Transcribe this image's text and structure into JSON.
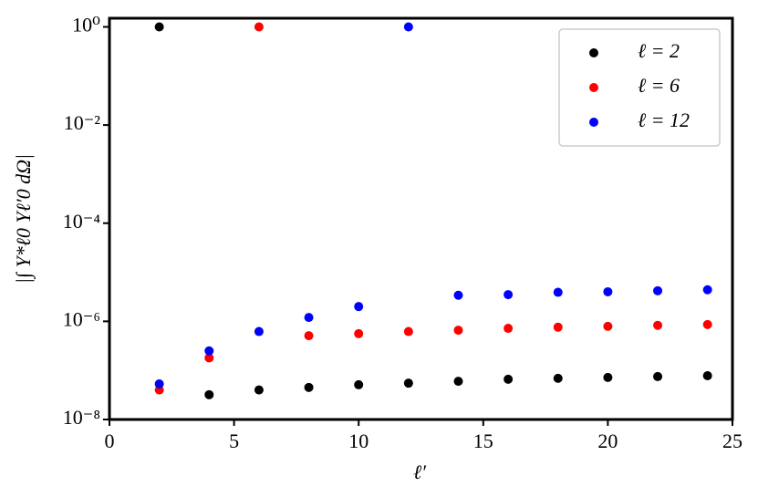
{
  "chart_data": {
    "type": "scatter",
    "x_label": "ℓ′",
    "y_label": "|∫ Y*ℓ0 Yℓ′0 dΩ|",
    "xlim": [
      0,
      25
    ],
    "xticks": [
      0,
      5,
      10,
      15,
      20,
      25
    ],
    "ylim": [
      1e-08,
      1.5
    ],
    "y_scale": "log",
    "yticks": [
      {
        "value": 1e-08,
        "label": "10⁻⁸"
      },
      {
        "value": 1e-06,
        "label": "10⁻⁶"
      },
      {
        "value": 0.0001,
        "label": "10⁻⁴"
      },
      {
        "value": 0.01,
        "label": "10⁻²"
      },
      {
        "value": 1,
        "label": "10⁰"
      }
    ],
    "legend": "upper right",
    "series": [
      {
        "name": "ℓ = 2",
        "color": "#000000",
        "x": [
          2,
          4,
          6,
          8,
          10,
          12,
          14,
          16,
          18,
          20,
          22,
          24
        ],
        "values": [
          1,
          3.2e-08,
          4e-08,
          4.5e-08,
          5.1e-08,
          5.5e-08,
          6e-08,
          6.6e-08,
          6.9e-08,
          7.2e-08,
          7.5e-08,
          7.8e-08
        ]
      },
      {
        "name": "ℓ = 6",
        "color": "#ff0000",
        "x": [
          2,
          4,
          6,
          8,
          10,
          12,
          14,
          16,
          18,
          20,
          22,
          24
        ],
        "values": [
          4e-08,
          1.8e-07,
          1,
          5.1e-07,
          5.6e-07,
          6.2e-07,
          6.6e-07,
          7.2e-07,
          7.6e-07,
          7.9e-07,
          8.3e-07,
          8.6e-07
        ]
      },
      {
        "name": "ℓ = 12",
        "color": "#0000ff",
        "x": [
          2,
          4,
          6,
          8,
          10,
          12,
          14,
          16,
          18,
          20,
          22,
          24
        ],
        "values": [
          5.3e-08,
          2.5e-07,
          6.2e-07,
          1.2e-06,
          2e-06,
          1,
          3.4e-06,
          3.5e-06,
          3.9e-06,
          4e-06,
          4.2e-06,
          4.4e-06
        ]
      }
    ]
  }
}
